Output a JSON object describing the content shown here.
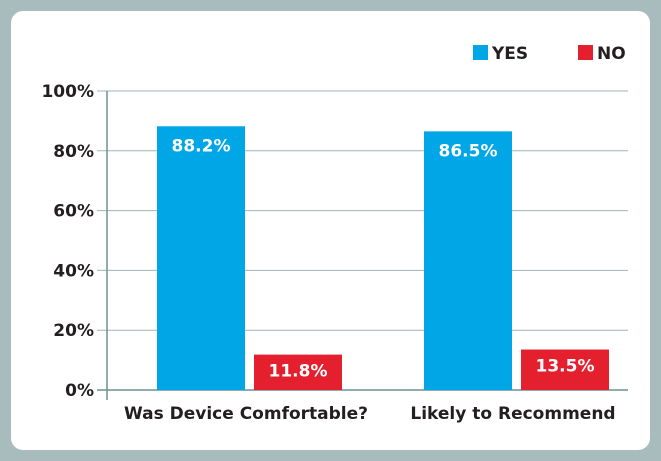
{
  "chart_data": {
    "type": "bar",
    "title": "",
    "xlabel": "",
    "ylabel": "",
    "categories": [
      "Was Device Comfortable?",
      "Likely to Recommend"
    ],
    "series": [
      {
        "name": "YES",
        "color": "#00a6e5",
        "values": [
          88.2,
          86.5
        ],
        "labels": [
          "88.2%",
          "86.5%"
        ]
      },
      {
        "name": "NO",
        "color": "#e5202e",
        "values": [
          11.8,
          13.5
        ],
        "labels": [
          "11.8%",
          "13.5%"
        ]
      }
    ],
    "ylim": [
      0,
      100
    ],
    "yticks": [
      0,
      20,
      40,
      60,
      80,
      100
    ],
    "ytick_labels": [
      "0%",
      "20%",
      "40%",
      "60%",
      "80%",
      "100%"
    ],
    "grid": true,
    "legend": "top-right"
  }
}
